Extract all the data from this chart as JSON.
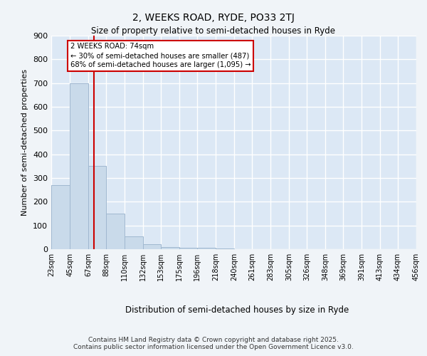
{
  "title1": "2, WEEKS ROAD, RYDE, PO33 2TJ",
  "title2": "Size of property relative to semi-detached houses in Ryde",
  "xlabel": "Distribution of semi-detached houses by size in Ryde",
  "ylabel": "Number of semi-detached properties",
  "bin_edges": [
    23,
    45,
    67,
    88,
    110,
    132,
    153,
    175,
    196,
    218,
    240,
    261,
    283,
    305,
    326,
    348,
    369,
    391,
    413,
    434,
    456
  ],
  "bar_heights": [
    270,
    700,
    350,
    150,
    55,
    20,
    10,
    5,
    5,
    2,
    1,
    0,
    0,
    0,
    0,
    0,
    0,
    0,
    0,
    0
  ],
  "bar_color": "#c9daea",
  "bar_edgecolor": "#a0b8d0",
  "property_size": 74,
  "vline_color": "#cc0000",
  "annotation_title": "2 WEEKS ROAD: 74sqm",
  "annotation_line1": "← 30% of semi-detached houses are smaller (487)",
  "annotation_line2": "68% of semi-detached houses are larger (1,095) →",
  "annotation_box_color": "#cc0000",
  "annotation_bg": "#ffffff",
  "ylim": [
    0,
    900
  ],
  "background_color": "#dce8f5",
  "fig_background": "#f0f4f8",
  "grid_color": "#ffffff",
  "footer1": "Contains HM Land Registry data © Crown copyright and database right 2025.",
  "footer2": "Contains public sector information licensed under the Open Government Licence v3.0."
}
